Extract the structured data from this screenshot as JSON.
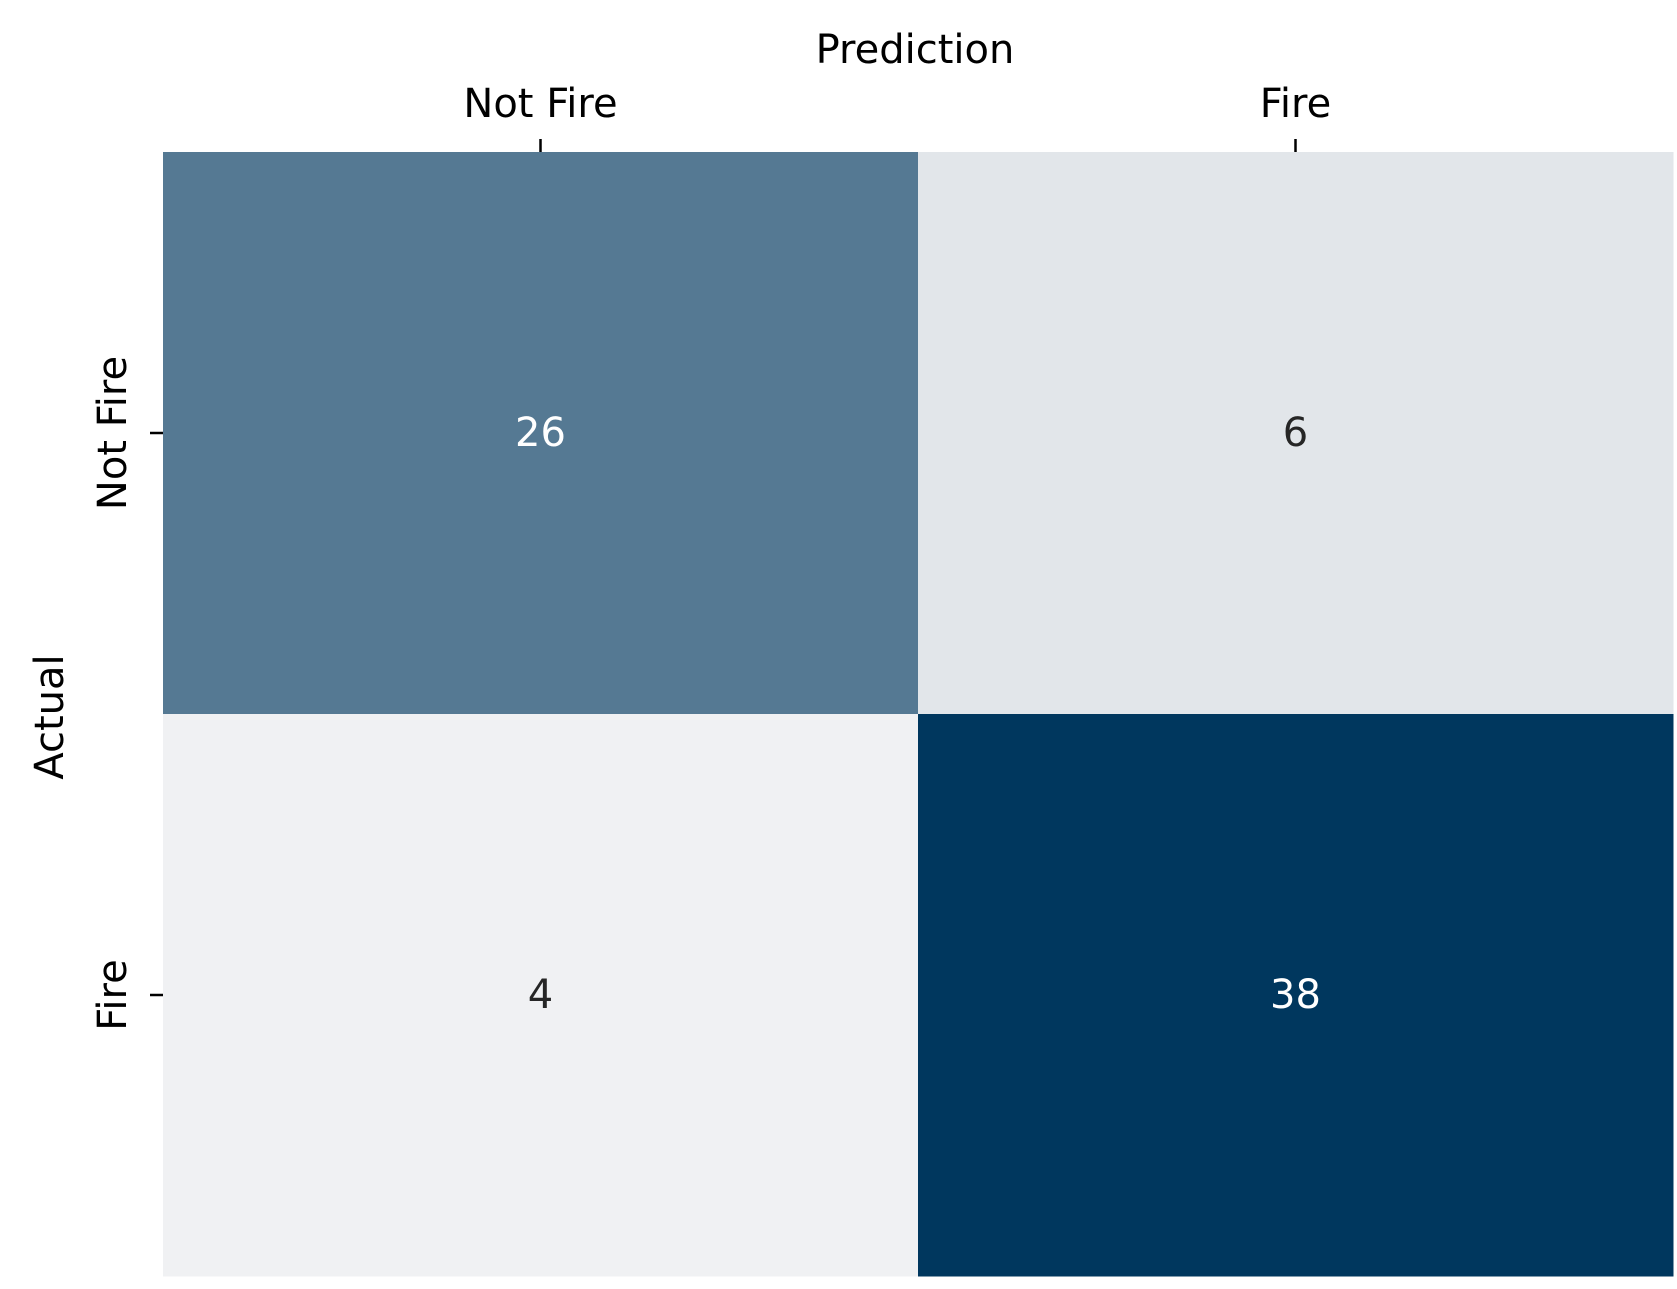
{
  "chart_data": {
    "type": "heatmap",
    "title": "",
    "xlabel": "Prediction",
    "ylabel": "Actual",
    "x_categories": [
      "Not Fire",
      "Fire"
    ],
    "y_categories": [
      "Not Fire",
      "Fire"
    ],
    "values": [
      [
        26,
        6
      ],
      [
        4,
        38
      ]
    ],
    "x_axis_position": "top",
    "colormap": {
      "low": "#f0f1f3",
      "high": "#00375e"
    },
    "text_colors": {
      "light": "#ffffff",
      "dark": "#262626"
    },
    "colorbar": false,
    "grid": false
  }
}
